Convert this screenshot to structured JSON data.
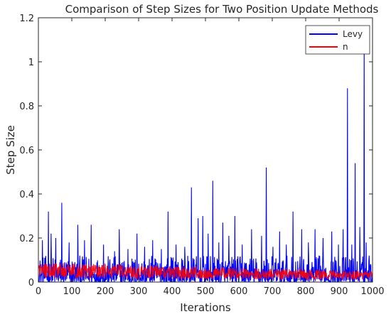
{
  "chart_data": {
    "type": "line",
    "title": "Comparison of Step Sizes for Two Position Update Methods",
    "xlabel": "Iterations",
    "ylabel": "Step Size",
    "xlim": [
      0,
      1000
    ],
    "ylim": [
      0,
      1.2
    ],
    "xticks": [
      0,
      100,
      200,
      300,
      400,
      500,
      600,
      700,
      800,
      900,
      1000
    ],
    "yticks": [
      0,
      0.2,
      0.4,
      0.6,
      0.8,
      1,
      1.2
    ],
    "xtick_labels": [
      "0",
      "100",
      "200",
      "300",
      "400",
      "500",
      "600",
      "700",
      "800",
      "900",
      "1000"
    ],
    "ytick_labels": [
      "0",
      "0.2",
      "0.4",
      "0.6",
      "0.8",
      "1",
      "1.2"
    ],
    "grid": false,
    "legend_position": "top-right",
    "series": [
      {
        "name": "Levy",
        "color": "#0000ff",
        "baseline_range": [
          0.0,
          0.12
        ],
        "spikes": [
          {
            "x": 12,
            "y": 0.19
          },
          {
            "x": 30,
            "y": 0.32
          },
          {
            "x": 38,
            "y": 0.22
          },
          {
            "x": 52,
            "y": 0.2
          },
          {
            "x": 70,
            "y": 0.36
          },
          {
            "x": 92,
            "y": 0.18
          },
          {
            "x": 118,
            "y": 0.26
          },
          {
            "x": 138,
            "y": 0.19
          },
          {
            "x": 158,
            "y": 0.26
          },
          {
            "x": 195,
            "y": 0.17
          },
          {
            "x": 228,
            "y": 0.14
          },
          {
            "x": 242,
            "y": 0.24
          },
          {
            "x": 268,
            "y": 0.15
          },
          {
            "x": 295,
            "y": 0.22
          },
          {
            "x": 318,
            "y": 0.16
          },
          {
            "x": 342,
            "y": 0.19
          },
          {
            "x": 368,
            "y": 0.15
          },
          {
            "x": 388,
            "y": 0.32
          },
          {
            "x": 412,
            "y": 0.17
          },
          {
            "x": 438,
            "y": 0.16
          },
          {
            "x": 458,
            "y": 0.43
          },
          {
            "x": 478,
            "y": 0.29
          },
          {
            "x": 492,
            "y": 0.3
          },
          {
            "x": 508,
            "y": 0.22
          },
          {
            "x": 522,
            "y": 0.46
          },
          {
            "x": 540,
            "y": 0.18
          },
          {
            "x": 552,
            "y": 0.27
          },
          {
            "x": 570,
            "y": 0.21
          },
          {
            "x": 588,
            "y": 0.3
          },
          {
            "x": 610,
            "y": 0.17
          },
          {
            "x": 638,
            "y": 0.24
          },
          {
            "x": 668,
            "y": 0.21
          },
          {
            "x": 682,
            "y": 0.52
          },
          {
            "x": 702,
            "y": 0.16
          },
          {
            "x": 722,
            "y": 0.23
          },
          {
            "x": 742,
            "y": 0.17
          },
          {
            "x": 762,
            "y": 0.32
          },
          {
            "x": 788,
            "y": 0.24
          },
          {
            "x": 808,
            "y": 0.18
          },
          {
            "x": 828,
            "y": 0.24
          },
          {
            "x": 852,
            "y": 0.2
          },
          {
            "x": 878,
            "y": 0.23
          },
          {
            "x": 898,
            "y": 0.17
          },
          {
            "x": 912,
            "y": 0.24
          },
          {
            "x": 925,
            "y": 0.88
          },
          {
            "x": 938,
            "y": 0.17
          },
          {
            "x": 948,
            "y": 0.54
          },
          {
            "x": 962,
            "y": 0.25
          },
          {
            "x": 975,
            "y": 1.13
          },
          {
            "x": 981,
            "y": 0.18
          },
          {
            "x": 990,
            "y": 0.12
          }
        ]
      },
      {
        "name": "n",
        "color": "#ff0000",
        "baseline_range": [
          0.0,
          0.09
        ],
        "spikes": []
      }
    ]
  }
}
